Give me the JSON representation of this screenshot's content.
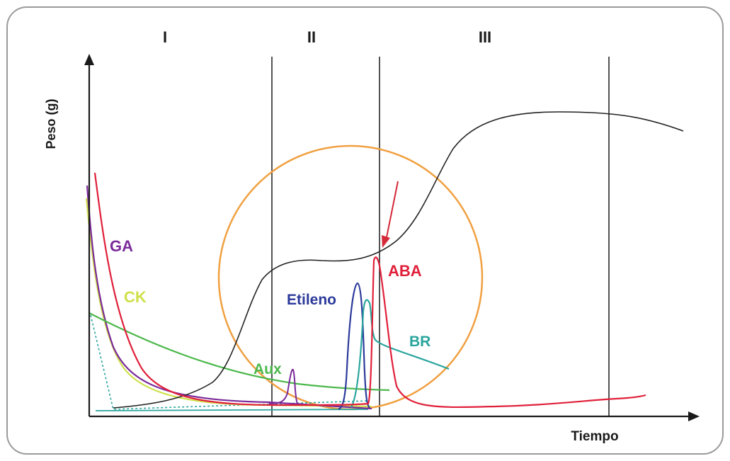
{
  "diagram": {
    "phases": [
      "I",
      "II",
      "III"
    ],
    "y_axis_label": "Peso (g)",
    "x_axis_label": "Tiempo",
    "curve_labels": {
      "ga": "GA",
      "ck": "CK",
      "aux": "Aux",
      "etileno": "Etileno",
      "aba": "ABA",
      "br": "BR"
    },
    "colors": {
      "frame": "#9a9a9a",
      "axes": "#1a1a1a",
      "weight_curve": "#222222",
      "ga": "#7b2a9a",
      "ck": "#cfe04a",
      "aux": "#4cb84c",
      "etileno": "#2c3a9a",
      "aba": "#e0203a",
      "br": "#2aa59e",
      "highlight_circle": "#f0a040",
      "arrow": "#d42a3a"
    }
  }
}
